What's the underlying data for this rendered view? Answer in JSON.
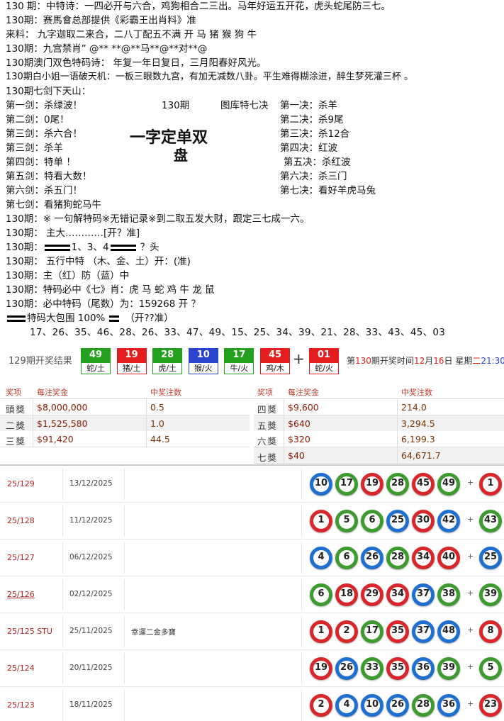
{
  "intro": [
    "130 期：中特诗：一四必开与六合，鸡狗相合二三出。马年好运五开花，虎头蛇尾防三七。",
    "130期：赛馬會总部提供《彩霸王出肖料》准",
    "来料：  九字迦取二来合，二八丁配五不满      开 马 猪 猴 狗 牛",
    "130期：九宫禁肖” @** **@**马**@**对**@",
    "130期澳门双色特码诗：  年复一年日复日，三月阳春好风光。",
    "130期白小姐一语破天机：一板三眼数九宫，有加无减数八卦。平生难得糊涂进，醉生梦死灌三杯 。",
    "130期七剑下天山："
  ],
  "swords": {
    "left": [
      "第一剑：杀绿波！",
      "第二剑：0尾！",
      "第三剑：杀六合！",
      "第三剑：杀羊",
      "第四剑：特单 ！",
      "第五剑：特看大数！",
      "第六剑：杀五门！",
      "第七剑：看猪狗蛇马牛"
    ],
    "middle_period": "130期",
    "middle_title": "图库特七决",
    "big_text": "一字定单双",
    "big_text2": "盘",
    "right": [
      "第一决：杀羊",
      "第二决：杀9尾",
      "第三决：杀12合",
      "第四决：红波",
      "第五决：杀红波",
      "第六决：杀三门",
      "第七决：看好羊虎马兔"
    ]
  },
  "tips": [
    "130期：※ 一句解特码※无错记录※到二取五发大财，跟定三七成一六。",
    "130期： 主大…………[开？准]"
  ],
  "bar_line": {
    "prefix": "130期：",
    "text": "1、3、4",
    "suffix": "？头"
  },
  "tips2": [
    "130期：  五行中特  （木、金、土）开：(准)",
    "130期：主（红）防（蓝）中",
    "130期：特码必中《七》肖：虎 马 蛇 鸡 牛 龙 鼠",
    "130期：必中特码（尾数）为：159268   开 ？"
  ],
  "surround_line": {
    "text": "特码大包围 100%",
    "suffix": "（开??准）"
  },
  "numbers": "17、26、35、46、28、26、33、47、49、15、25、34、39、21、28、33、43、45、03",
  "result": {
    "title": "129期开奖结果",
    "balls": [
      {
        "number": "49",
        "label": "蛇/土",
        "color": "green"
      },
      {
        "number": "19",
        "label": "猪/土",
        "color": "red"
      },
      {
        "number": "28",
        "label": "虎/土",
        "color": "green"
      },
      {
        "number": "10",
        "label": "猴/火",
        "color": "blue"
      },
      {
        "number": "17",
        "label": "牛/火",
        "color": "green"
      },
      {
        "number": "45",
        "label": "鸡/木",
        "color": "red"
      }
    ],
    "special": {
      "number": "01",
      "label": "蛇/火",
      "color": "red"
    },
    "next": [
      {
        "text": "第",
        "color": "dark"
      },
      {
        "text": "130",
        "color": "red"
      },
      {
        "text": "期开奖时间",
        "color": "dark"
      },
      {
        "text": "12",
        "color": "red"
      },
      {
        "text": "月",
        "color": "dark"
      },
      {
        "text": "16",
        "color": "red"
      },
      {
        "text": "日 星期",
        "color": "dark"
      },
      {
        "text": "二",
        "color": "red"
      },
      {
        "text": "21:30",
        "color": "blue"
      }
    ]
  },
  "prizes": {
    "headers": [
      "奖项",
      "每注奖金",
      "中奖注数"
    ],
    "left": [
      [
        "頭獎",
        "$8,000,000",
        "0.5"
      ],
      [
        "二獎",
        "$1,525,580",
        "1.0"
      ],
      [
        "三獎",
        "$91,420",
        "44.5"
      ]
    ],
    "right": [
      [
        "四獎",
        "$9,600",
        "214.0"
      ],
      [
        "五獎",
        "$640",
        "3,294.5"
      ],
      [
        "六獎",
        "$320",
        "6,199.3"
      ],
      [
        "七獎",
        "$40",
        "64,671.7"
      ]
    ]
  },
  "draws": [
    {
      "period": "25/129",
      "date": "13/12/2025",
      "balls": [
        "10",
        "17",
        "19",
        "28",
        "45",
        "49"
      ],
      "colors": [
        "blue",
        "green",
        "red",
        "green",
        "red",
        "green"
      ],
      "special": "1",
      "special_color": "red"
    },
    {
      "period": "25/128",
      "date": "11/12/2025",
      "balls": [
        "1",
        "5",
        "6",
        "25",
        "30",
        "42"
      ],
      "colors": [
        "red",
        "green",
        "green",
        "blue",
        "red",
        "blue"
      ],
      "special": "43",
      "special_color": "green"
    },
    {
      "period": "25/127",
      "date": "06/12/2025",
      "balls": [
        "4",
        "6",
        "26",
        "28",
        "34",
        "40"
      ],
      "colors": [
        "blue",
        "green",
        "blue",
        "green",
        "red",
        "red"
      ],
      "special": "25",
      "special_color": "blue"
    },
    {
      "period": "25/126",
      "date": "02/12/2025",
      "balls": [
        "6",
        "18",
        "29",
        "34",
        "37",
        "38"
      ],
      "colors": [
        "green",
        "red",
        "red",
        "red",
        "blue",
        "green"
      ],
      "special": "39",
      "special_color": "green"
    },
    {
      "period": "25/125 STU",
      "date": "25/11/2025",
      "note": "幸運二金多寶",
      "balls": [
        "1",
        "2",
        "17",
        "35",
        "37",
        "48"
      ],
      "colors": [
        "red",
        "red",
        "green",
        "red",
        "blue",
        "blue"
      ],
      "special": "8",
      "special_color": "red"
    },
    {
      "period": "25/124",
      "date": "20/11/2025",
      "balls": [
        "19",
        "26",
        "33",
        "35",
        "36",
        "39"
      ],
      "colors": [
        "red",
        "blue",
        "green",
        "red",
        "blue",
        "green"
      ],
      "special": "5",
      "special_color": "green"
    },
    {
      "period": "25/123",
      "date": "18/11/2025",
      "balls": [
        "2",
        "4",
        "10",
        "26",
        "28",
        "36"
      ],
      "colors": [
        "red",
        "blue",
        "blue",
        "blue",
        "green",
        "blue"
      ],
      "special": "23",
      "special_color": "red"
    }
  ]
}
